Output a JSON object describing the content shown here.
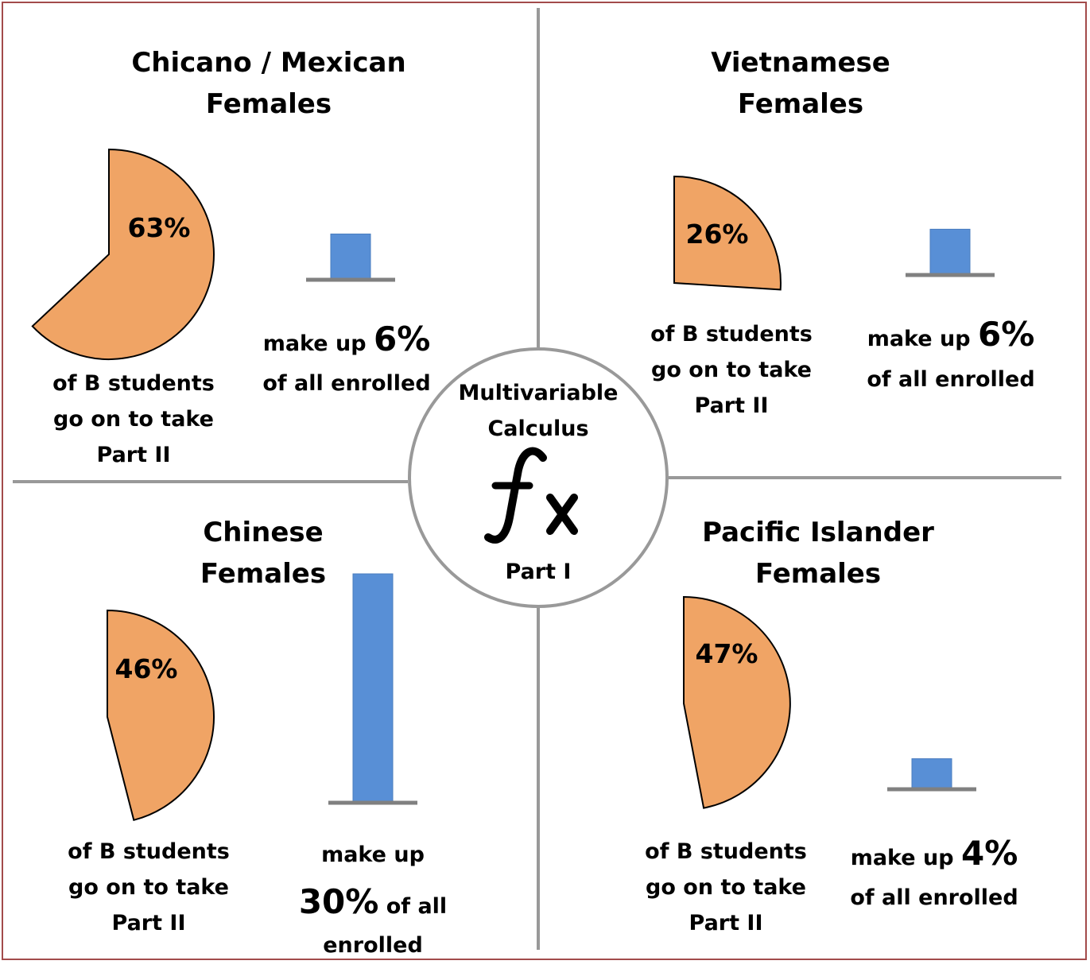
{
  "colors": {
    "pie": "#f0a465",
    "bar": "#588fd6",
    "axis": "#808080",
    "frame": "#a24b4b",
    "divider": "#999999"
  },
  "center": {
    "line1": "Multivariable",
    "line2": "Calculus",
    "icon": "function-fx-icon",
    "symbol_f": "f",
    "symbol_x": "x",
    "line3": "Part I"
  },
  "chart_data": [
    {
      "type": "pie",
      "title": "Chicano / Mexican Females",
      "title_line1": "Chicano / Mexican",
      "title_line2": "Females",
      "continue_percent": 63,
      "continue_label": "63%",
      "caption": [
        "of B students",
        "go on to take",
        "Part II"
      ],
      "enrolled_percent": 6,
      "enroll_pre": "make up",
      "enroll_value": "6%",
      "enroll_post": "of all enrolled"
    },
    {
      "type": "pie",
      "title": "Vietnamese Females",
      "title_line1": "Vietnamese",
      "title_line2": "Females",
      "continue_percent": 26,
      "continue_label": "26%",
      "caption": [
        "of B students",
        "go on to take",
        "Part II"
      ],
      "enrolled_percent": 6,
      "enroll_pre": "make up",
      "enroll_value": "6%",
      "enroll_post": "of all enrolled"
    },
    {
      "type": "pie",
      "title": "Chinese Females",
      "title_line1": "Chinese",
      "title_line2": "Females",
      "continue_percent": 46,
      "continue_label": "46%",
      "caption": [
        "of B students",
        "go on to take",
        "Part II"
      ],
      "enrolled_percent": 30,
      "enroll_pre": "make up",
      "enroll_value": "30%",
      "enroll_mid": "of all",
      "enroll_post": "enrolled"
    },
    {
      "type": "pie",
      "title": "Pacific Islander Females",
      "title_line1": "Pacific Islander",
      "title_line2": "Females",
      "continue_percent": 47,
      "continue_label": "47%",
      "caption": [
        "of B students",
        "go on to take",
        "Part II"
      ],
      "enrolled_percent": 4,
      "enroll_pre": "make up",
      "enroll_value": "4%",
      "enroll_post": "of all enrolled"
    }
  ]
}
